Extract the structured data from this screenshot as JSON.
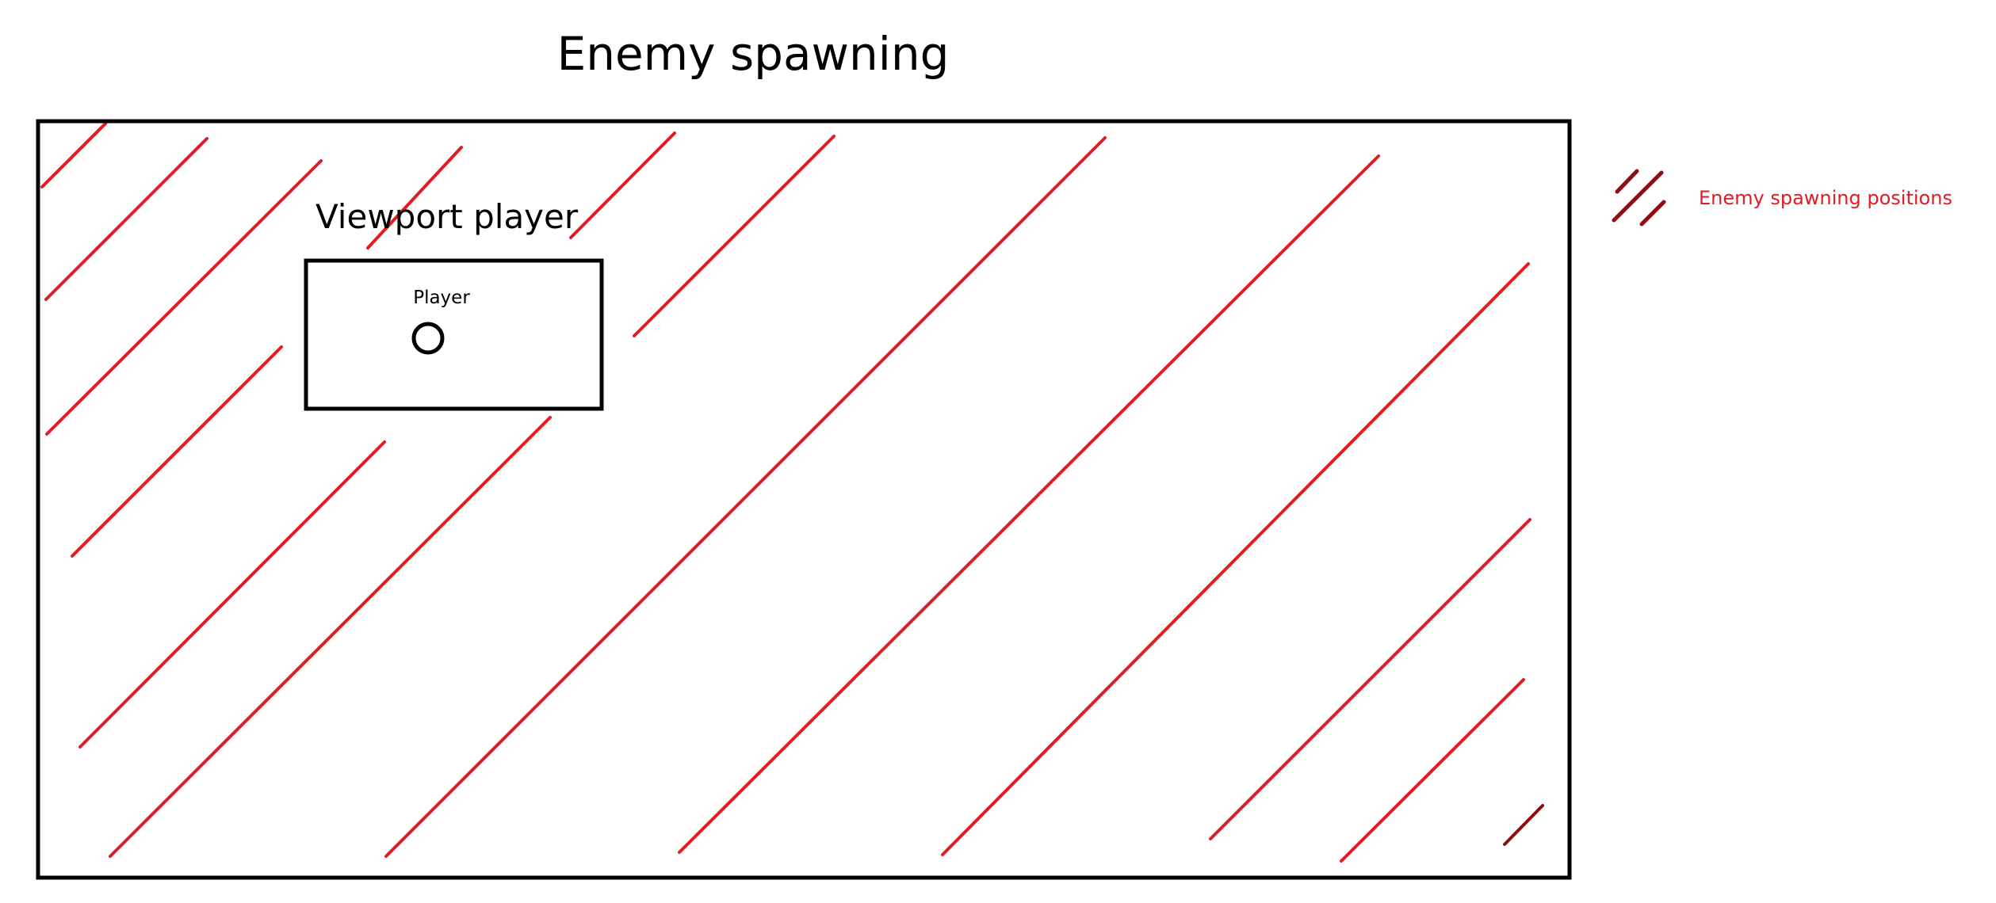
{
  "diagram": {
    "title": "Enemy spawning",
    "viewport_label": "Viewport player",
    "player_label": "Player",
    "legend": {
      "label": "Enemy spawning positions",
      "text_color": "#e31c23",
      "swatch_color": "#8b0f14"
    },
    "colors": {
      "hatch": "#e31c23",
      "hatch_dark": "#8b0f14",
      "outline": "#000000",
      "background": "#ffffff"
    }
  }
}
